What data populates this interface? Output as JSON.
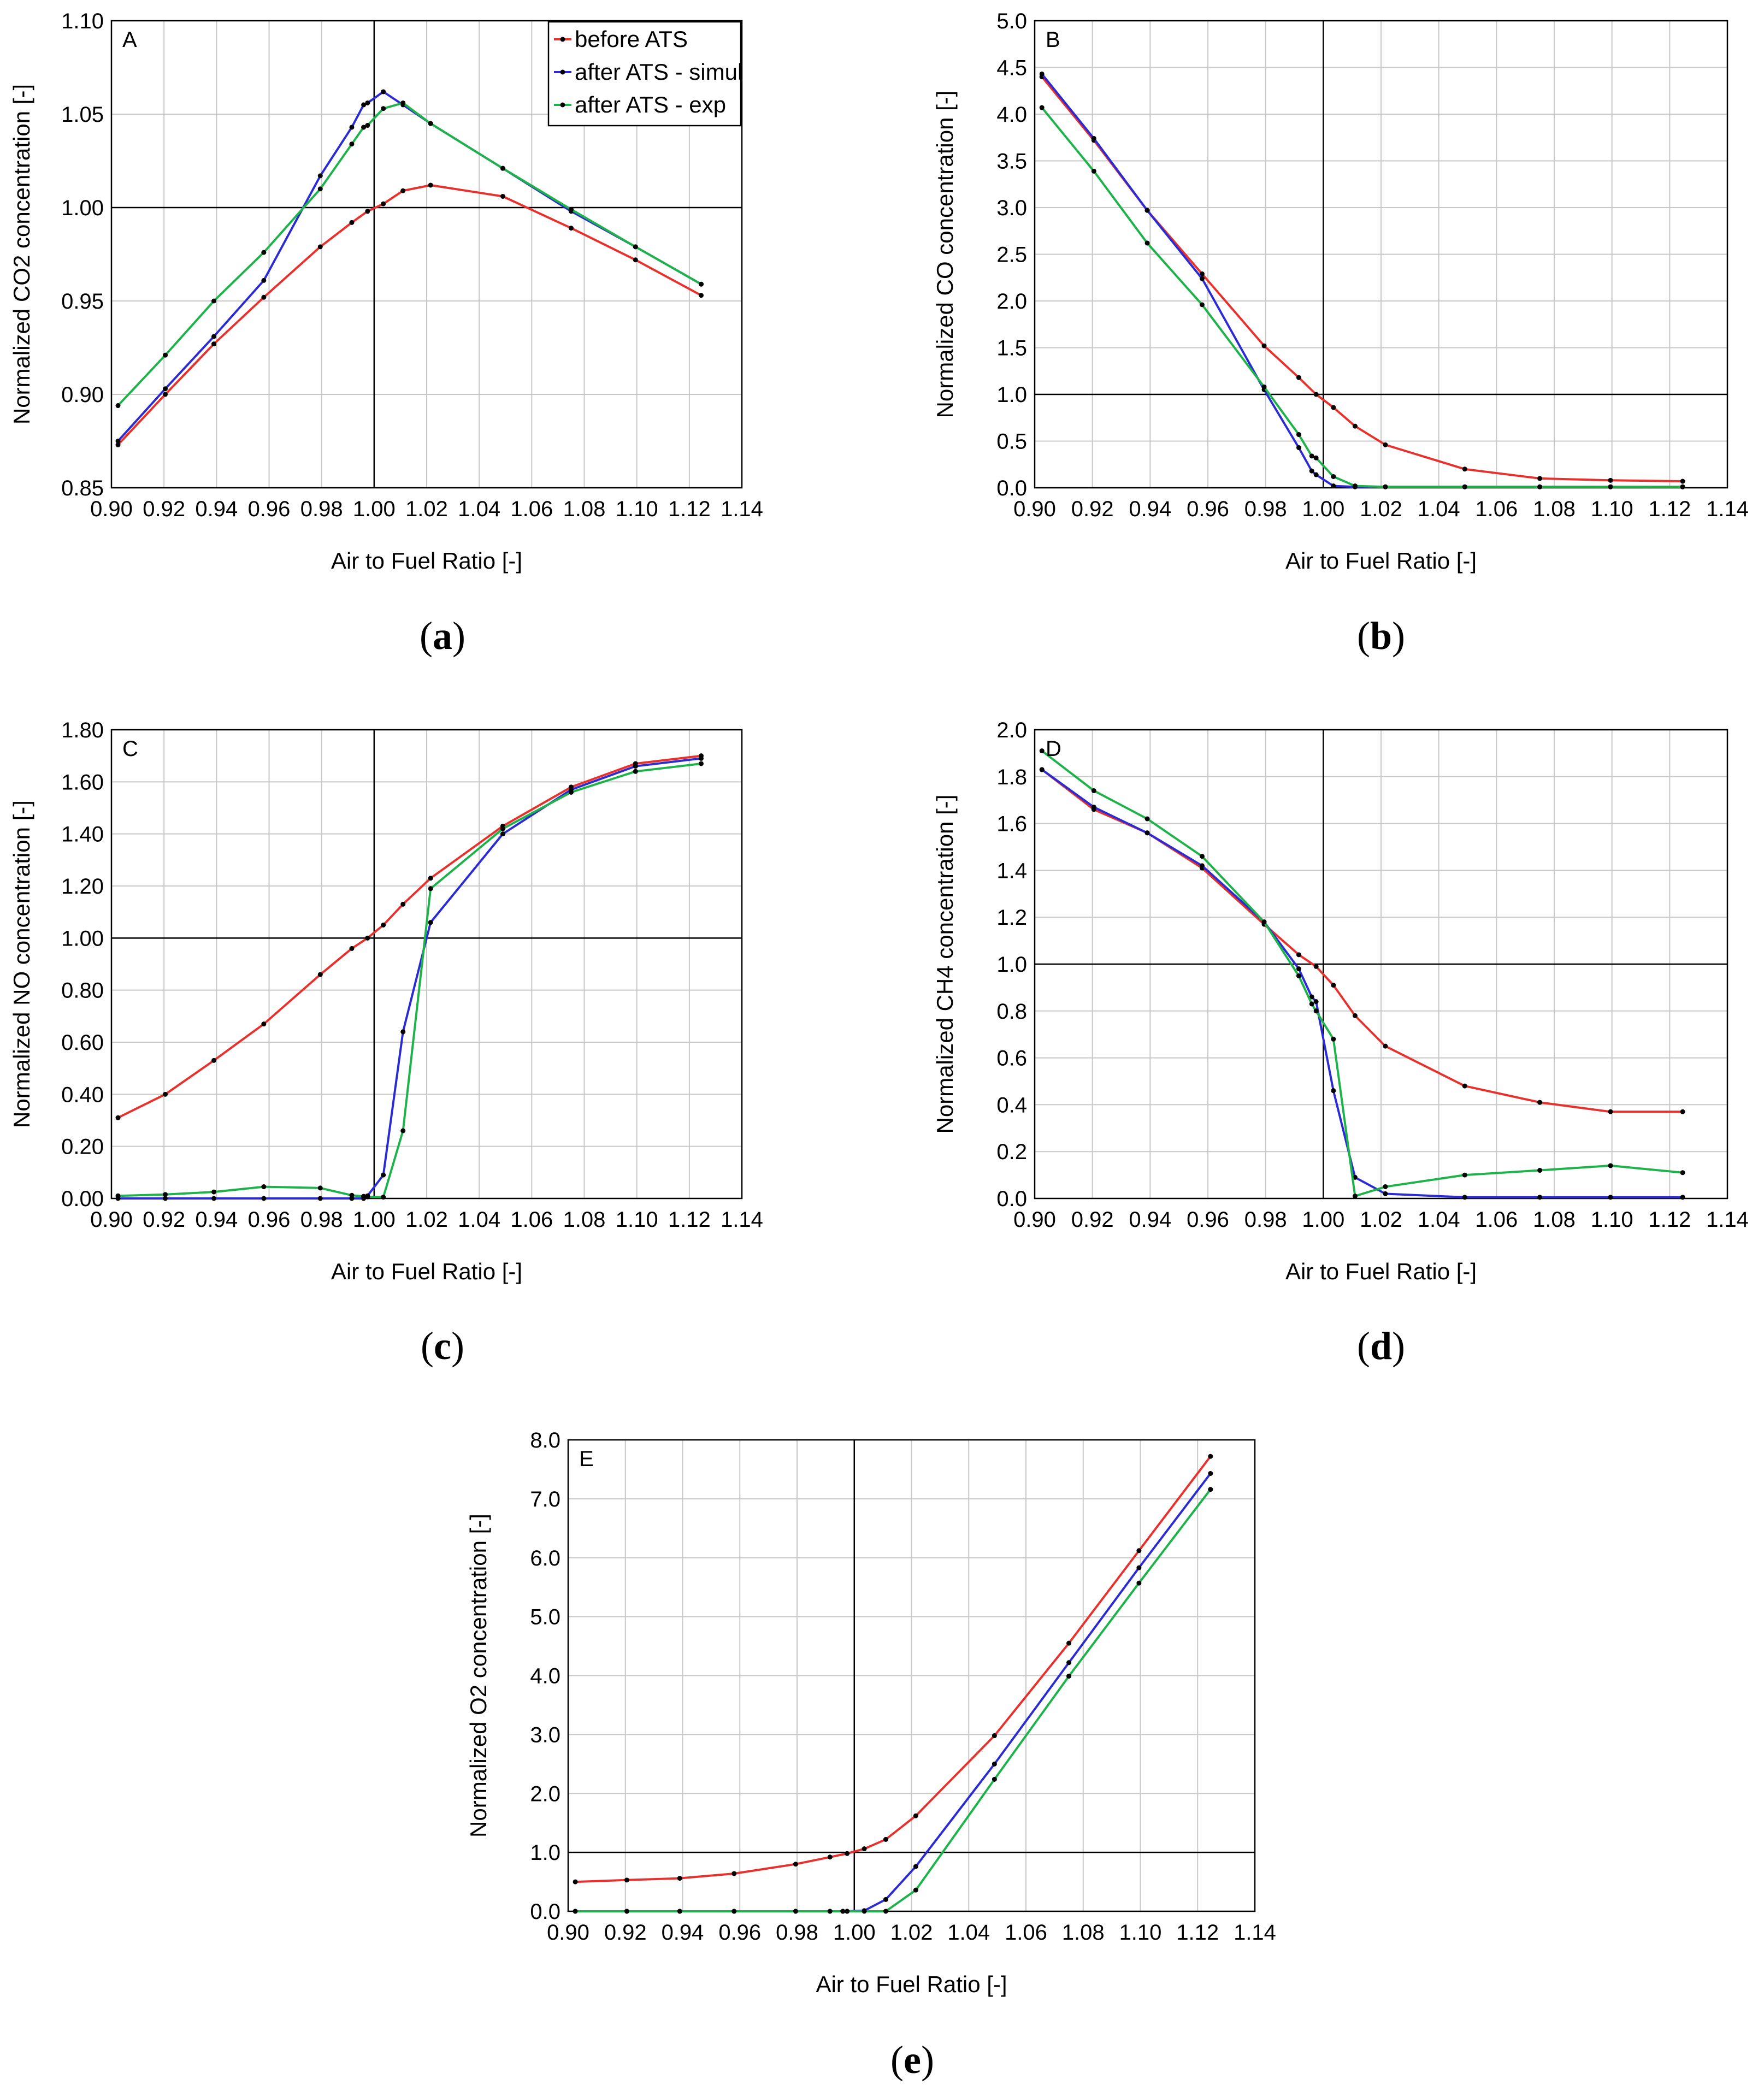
{
  "colors": {
    "before": "#e8312d",
    "simul": "#2b2bd4",
    "exp": "#1db34a",
    "grid": "#c8c8c8",
    "reference": "#000000",
    "marker": "#000000"
  },
  "legend": {
    "before": "before ATS",
    "simul": "after ATS - simul",
    "exp": "after ATS - exp"
  },
  "chart_data": [
    {
      "id": "a",
      "type": "line",
      "panel_letter": "A",
      "caption_label": "a",
      "xlabel": "Air to Fuel Ratio [-]",
      "ylabel": "Normalized CO2 concentration [-]",
      "xlim": [
        0.9,
        1.14
      ],
      "ylim": [
        0.85,
        1.1
      ],
      "xticks": [
        "0.90",
        "0.92",
        "0.94",
        "0.96",
        "0.98",
        "1.00",
        "1.02",
        "1.04",
        "1.06",
        "1.08",
        "1.10",
        "1.12",
        "1.14"
      ],
      "yticks": [
        "0.85",
        "0.90",
        "0.95",
        "1.00",
        "1.05",
        "1.10"
      ],
      "ref_x": 1.0,
      "ref_y": 1.0,
      "grid": true,
      "legend": "top-right",
      "series": [
        {
          "key": "before",
          "name": "before ATS",
          "x": [
            0.9025,
            0.9205,
            0.939,
            0.958,
            0.9795,
            0.9915,
            0.9975,
            1.0035,
            1.011,
            1.0215,
            1.049,
            1.075,
            1.0995,
            1.1245
          ],
          "y": [
            0.873,
            0.9,
            0.927,
            0.952,
            0.979,
            0.992,
            0.998,
            1.002,
            1.009,
            1.012,
            1.006,
            0.989,
            0.972,
            0.953
          ]
        },
        {
          "key": "simul",
          "name": "after ATS - simul",
          "x": [
            0.9025,
            0.9205,
            0.939,
            0.958,
            0.9795,
            0.9915,
            0.996,
            0.9975,
            1.0035,
            1.011,
            1.0215,
            1.049,
            1.075,
            1.0995,
            1.1245
          ],
          "y": [
            0.875,
            0.903,
            0.931,
            0.961,
            1.017,
            1.043,
            1.055,
            1.056,
            1.062,
            1.055,
            1.045,
            1.021,
            0.998,
            0.979,
            0.959
          ]
        },
        {
          "key": "exp",
          "name": "after ATS - exp",
          "x": [
            0.9025,
            0.9205,
            0.939,
            0.958,
            0.9795,
            0.9915,
            0.996,
            0.9975,
            1.0035,
            1.011,
            1.0215,
            1.049,
            1.075,
            1.0995,
            1.1245
          ],
          "y": [
            0.894,
            0.921,
            0.95,
            0.976,
            1.01,
            1.034,
            1.043,
            1.044,
            1.053,
            1.056,
            1.045,
            1.021,
            0.999,
            0.979,
            0.959
          ]
        }
      ]
    },
    {
      "id": "b",
      "type": "line",
      "panel_letter": "B",
      "caption_label": "b",
      "xlabel": "Air to Fuel Ratio [-]",
      "ylabel": "Normalized CO concentration [-]",
      "xlim": [
        0.9,
        1.14
      ],
      "ylim": [
        0.0,
        5.0
      ],
      "xticks": [
        "0.90",
        "0.92",
        "0.94",
        "0.96",
        "0.98",
        "1.00",
        "1.02",
        "1.04",
        "1.06",
        "1.08",
        "1.10",
        "1.12",
        "1.14"
      ],
      "yticks": [
        "0.0",
        "0.5",
        "1.0",
        "1.5",
        "2.0",
        "2.5",
        "3.0",
        "3.5",
        "4.0",
        "4.5",
        "5.0"
      ],
      "ref_x": 1.0,
      "ref_y": 1.0,
      "grid": true,
      "series": [
        {
          "key": "before",
          "name": "before ATS",
          "x": [
            0.9025,
            0.9205,
            0.939,
            0.958,
            0.9795,
            0.9915,
            0.9975,
            1.0035,
            1.011,
            1.0215,
            1.049,
            1.075,
            1.0995,
            1.1245
          ],
          "y": [
            4.4,
            3.72,
            2.97,
            2.29,
            1.52,
            1.18,
            1.0,
            0.86,
            0.66,
            0.46,
            0.2,
            0.1,
            0.08,
            0.07
          ]
        },
        {
          "key": "simul",
          "name": "after ATS - simul",
          "x": [
            0.9025,
            0.9205,
            0.939,
            0.958,
            0.9795,
            0.9915,
            0.996,
            0.9975,
            1.0035,
            1.011,
            1.0215,
            1.049,
            1.075,
            1.0995,
            1.1245
          ],
          "y": [
            4.43,
            3.74,
            2.97,
            2.24,
            1.05,
            0.43,
            0.18,
            0.14,
            0.02,
            0.01,
            0.01,
            0.01,
            0.01,
            0.01,
            0.01
          ]
        },
        {
          "key": "exp",
          "name": "after ATS - exp",
          "x": [
            0.9025,
            0.9205,
            0.939,
            0.958,
            0.9795,
            0.9915,
            0.996,
            0.9975,
            1.0035,
            1.011,
            1.0215,
            1.049,
            1.075,
            1.0995,
            1.1245
          ],
          "y": [
            4.07,
            3.39,
            2.62,
            1.96,
            1.08,
            0.57,
            0.34,
            0.32,
            0.12,
            0.02,
            0.01,
            0.01,
            0.01,
            0.01,
            0.01
          ]
        }
      ]
    },
    {
      "id": "c",
      "type": "line",
      "panel_letter": "C",
      "caption_label": "c",
      "xlabel": "Air to Fuel Ratio [-]",
      "ylabel": "Normalized NO concentration [-]",
      "xlim": [
        0.9,
        1.14
      ],
      "ylim": [
        0.0,
        1.8
      ],
      "xticks": [
        "0.90",
        "0.92",
        "0.94",
        "0.96",
        "0.98",
        "1.00",
        "1.02",
        "1.04",
        "1.06",
        "1.08",
        "1.10",
        "1.12",
        "1.14"
      ],
      "yticks": [
        "0.00",
        "0.20",
        "0.40",
        "0.60",
        "0.80",
        "1.00",
        "1.20",
        "1.40",
        "1.60",
        "1.80"
      ],
      "ref_x": 1.0,
      "ref_y": 1.0,
      "grid": true,
      "series": [
        {
          "key": "before",
          "name": "before ATS",
          "x": [
            0.9025,
            0.9205,
            0.939,
            0.958,
            0.9795,
            0.9915,
            0.9975,
            1.0035,
            1.011,
            1.0215,
            1.049,
            1.075,
            1.0995,
            1.1245
          ],
          "y": [
            0.31,
            0.4,
            0.53,
            0.67,
            0.86,
            0.96,
            1.0,
            1.05,
            1.13,
            1.23,
            1.43,
            1.58,
            1.67,
            1.7
          ]
        },
        {
          "key": "simul",
          "name": "after ATS - simul",
          "x": [
            0.9025,
            0.9205,
            0.939,
            0.958,
            0.9795,
            0.9915,
            0.996,
            0.9975,
            1.0035,
            1.011,
            1.0215,
            1.049,
            1.075,
            1.0995,
            1.1245
          ],
          "y": [
            0.0,
            0.0,
            0.0,
            0.0,
            0.0,
            0.0,
            0.0,
            0.01,
            0.09,
            0.64,
            1.06,
            1.4,
            1.57,
            1.66,
            1.69
          ]
        },
        {
          "key": "exp",
          "name": "after ATS - exp",
          "x": [
            0.9025,
            0.9205,
            0.939,
            0.958,
            0.9795,
            0.9915,
            0.996,
            0.9975,
            1.0035,
            1.011,
            1.0215,
            1.049,
            1.075,
            1.0995,
            1.1245
          ],
          "y": [
            0.01,
            0.015,
            0.025,
            0.045,
            0.04,
            0.012,
            0.008,
            0.006,
            0.005,
            0.26,
            1.19,
            1.42,
            1.56,
            1.64,
            1.67
          ]
        }
      ]
    },
    {
      "id": "d",
      "type": "line",
      "panel_letter": "D",
      "caption_label": "d",
      "xlabel": "Air to Fuel Ratio [-]",
      "ylabel": "Normalized CH4 concentration [-]",
      "xlim": [
        0.9,
        1.14
      ],
      "ylim": [
        0.0,
        2.0
      ],
      "xticks": [
        "0.90",
        "0.92",
        "0.94",
        "0.96",
        "0.98",
        "1.00",
        "1.02",
        "1.04",
        "1.06",
        "1.08",
        "1.10",
        "1.12",
        "1.14"
      ],
      "yticks": [
        "0.0",
        "0.2",
        "0.4",
        "0.6",
        "0.8",
        "1.0",
        "1.2",
        "1.4",
        "1.6",
        "1.8",
        "2.0"
      ],
      "ref_x": 1.0,
      "ref_y": 1.0,
      "grid": true,
      "series": [
        {
          "key": "before",
          "name": "before ATS",
          "x": [
            0.9025,
            0.9205,
            0.939,
            0.958,
            0.9795,
            0.9915,
            0.9975,
            1.0035,
            1.011,
            1.0215,
            1.049,
            1.075,
            1.0995,
            1.1245
          ],
          "y": [
            1.83,
            1.66,
            1.56,
            1.41,
            1.17,
            1.04,
            0.99,
            0.91,
            0.78,
            0.65,
            0.48,
            0.41,
            0.37,
            0.37
          ]
        },
        {
          "key": "simul",
          "name": "after ATS - simul",
          "x": [
            0.9025,
            0.9205,
            0.939,
            0.958,
            0.9795,
            0.9915,
            0.996,
            0.9975,
            1.0035,
            1.011,
            1.0215,
            1.049,
            1.075,
            1.0995,
            1.1245
          ],
          "y": [
            1.83,
            1.67,
            1.56,
            1.42,
            1.18,
            0.98,
            0.86,
            0.84,
            0.46,
            0.09,
            0.02,
            0.005,
            0.005,
            0.005,
            0.005
          ]
        },
        {
          "key": "exp",
          "name": "after ATS - exp",
          "x": [
            0.9025,
            0.9205,
            0.939,
            0.958,
            0.9795,
            0.9915,
            0.996,
            0.9975,
            1.0035,
            1.011,
            1.0215,
            1.049,
            1.075,
            1.0995,
            1.1245
          ],
          "y": [
            1.91,
            1.74,
            1.62,
            1.46,
            1.18,
            0.95,
            0.83,
            0.8,
            0.68,
            0.01,
            0.05,
            0.1,
            0.12,
            0.14,
            0.11
          ]
        }
      ]
    },
    {
      "id": "e",
      "type": "line",
      "panel_letter": "E",
      "caption_label": "e",
      "xlabel": "Air to Fuel Ratio [-]",
      "ylabel": "Normalized O2 concentration [-]",
      "xlim": [
        0.9,
        1.14
      ],
      "ylim": [
        0.0,
        8.0
      ],
      "xticks": [
        "0.90",
        "0.92",
        "0.94",
        "0.96",
        "0.98",
        "1.00",
        "1.02",
        "1.04",
        "1.06",
        "1.08",
        "1.10",
        "1.12",
        "1.14"
      ],
      "yticks": [
        "0.0",
        "1.0",
        "2.0",
        "3.0",
        "4.0",
        "5.0",
        "6.0",
        "7.0",
        "8.0"
      ],
      "ref_x": 1.0,
      "ref_y": 1.0,
      "grid": true,
      "series": [
        {
          "key": "before",
          "name": "before ATS",
          "x": [
            0.9025,
            0.9205,
            0.939,
            0.958,
            0.9795,
            0.9915,
            0.9975,
            1.0035,
            1.011,
            1.0215,
            1.049,
            1.075,
            1.0995,
            1.1245
          ],
          "y": [
            0.5,
            0.53,
            0.56,
            0.64,
            0.8,
            0.92,
            0.98,
            1.06,
            1.22,
            1.62,
            2.98,
            4.55,
            6.12,
            7.72
          ]
        },
        {
          "key": "simul",
          "name": "after ATS - simul",
          "x": [
            0.9025,
            0.9205,
            0.939,
            0.958,
            0.9795,
            0.9915,
            0.996,
            0.9975,
            1.0035,
            1.011,
            1.0215,
            1.049,
            1.075,
            1.0995,
            1.1245
          ],
          "y": [
            0.0,
            0.0,
            0.0,
            0.0,
            0.0,
            0.0,
            0.0,
            0.0,
            0.01,
            0.2,
            0.76,
            2.5,
            4.22,
            5.83,
            7.43
          ]
        },
        {
          "key": "exp",
          "name": "after ATS - exp",
          "x": [
            0.9025,
            0.9205,
            0.939,
            0.958,
            0.9795,
            0.9915,
            0.996,
            0.9975,
            1.0035,
            1.011,
            1.0215,
            1.049,
            1.075,
            1.0995,
            1.1245
          ],
          "y": [
            0.0,
            0.0,
            0.0,
            0.0,
            0.0,
            0.0,
            0.0,
            0.0,
            0.0,
            0.0,
            0.36,
            2.24,
            3.99,
            5.57,
            7.16
          ]
        }
      ]
    }
  ]
}
